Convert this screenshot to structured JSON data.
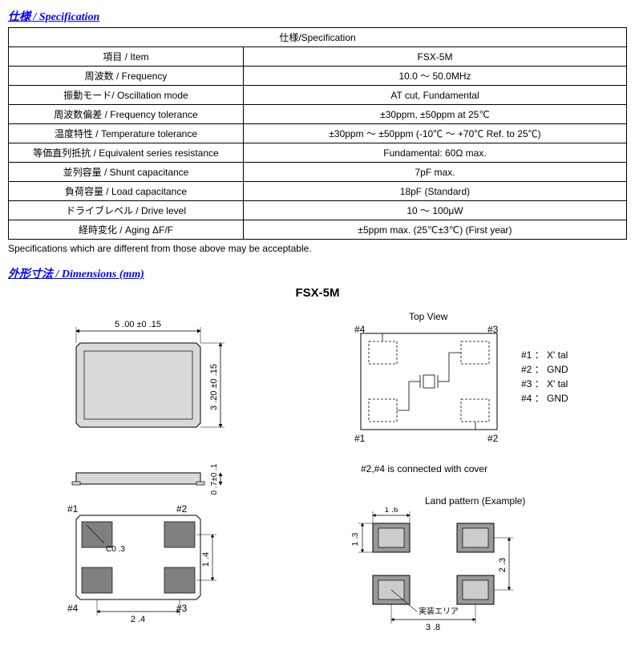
{
  "headers": {
    "spec": "仕様 / Specification",
    "dims": "外形寸法 / Dimensions (mm)"
  },
  "spec_table": {
    "title": "仕様/Specification",
    "rows": [
      {
        "label": "項目 / Item",
        "value": "FSX-5M"
      },
      {
        "label": "周波数 / Frequency",
        "value": "10.0 ～ 50.0MHz"
      },
      {
        "label": "振動モード/ Oscillation mode",
        "value": "AT cut, Fundamental"
      },
      {
        "label": "周波数偏差 / Frequency tolerance",
        "value": "±30ppm,  ±50ppm at 25℃"
      },
      {
        "label": "温度特性 / Temperature tolerance",
        "value": "±30ppm ～ ±50ppm  (-10℃ ～ +70℃ Ref. to 25℃)"
      },
      {
        "label": "等価直列抵抗 / Equivalent series resistance",
        "value": "Fundamental: 60Ω max."
      },
      {
        "label": "並列容量 / Shunt capacitance",
        "value": "7pF max."
      },
      {
        "label": "負荷容量 / Load capacitance",
        "value": "18pF  (Standard)"
      },
      {
        "label": "ドライブレベル / Drive level",
        "value": "10 ～ 100μW"
      },
      {
        "label": "経時変化 / Aging    ΔF/F",
        "value": "±5ppm max. (25℃±3℃)  (First year)"
      }
    ]
  },
  "footnote": "Specifications which are different from those above may be acceptable.",
  "drawing": {
    "title": "FSX-5M",
    "package": {
      "width_label": "5 .00 ±0 .15",
      "height_label": "3 .20 ±0 .15",
      "side_height_label": "0 .7±0 .1",
      "body_fill": "#d9d9d9",
      "line": "#000000"
    },
    "bottom": {
      "pins": {
        "p1": "#1",
        "p2": "#2",
        "p3": "#3",
        "p4": "#4"
      },
      "chamfer_label": "C0 .3",
      "pitch_x": "2 .4",
      "pitch_y": "1 .4",
      "pad_fill": "#808080"
    },
    "topview": {
      "label": "Top View",
      "pins": {
        "p1": "#1",
        "p2": "#2",
        "p3": "#3",
        "p4": "#4"
      }
    },
    "legend": {
      "l1": "#1 ： X' tal",
      "l2": "#2 ： GND",
      "l3": "#3 ： X' tal",
      "l4": "#4 ： GND"
    },
    "cover_note": "#2,#4 is connected with cover",
    "land": {
      "label": "Land pattern (Example)",
      "w": "1 .6",
      "h": "1 .3",
      "pitch_x": "3 .8",
      "pitch_y": "2 .3",
      "mount_label": "実装エリア",
      "pad_fill": "#999999",
      "inner_fill": "#cccccc"
    }
  }
}
